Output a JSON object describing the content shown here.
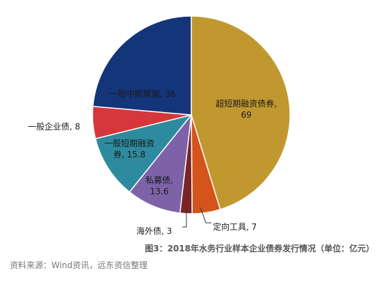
{
  "chart_data": {
    "type": "pie",
    "title": "",
    "slices": [
      {
        "label": "超短期融资债券",
        "value": 69,
        "text_lines": [
          "超短期融资债券,",
          "69"
        ],
        "color": "#C0982F"
      },
      {
        "label": "定向工具",
        "value": 7,
        "text_lines": [
          "定向工具, 7"
        ],
        "color": "#D4541B"
      },
      {
        "label": "海外债",
        "value": 3,
        "text_lines": [
          "海外债, 3"
        ],
        "color": "#7A2424"
      },
      {
        "label": "私募债",
        "value": 13.6,
        "text_lines": [
          "私募债,",
          "13.6"
        ],
        "color": "#7D62A8"
      },
      {
        "label": "一般短期融资券",
        "value": 15.8,
        "text_lines": [
          "一般短期融资",
          "券, 15.8"
        ],
        "color": "#2E8A9E"
      },
      {
        "label": "一般企业债",
        "value": 8,
        "text_lines": [
          "一般企业债, 8"
        ],
        "color": "#D6373A"
      },
      {
        "label": "一般中期票据",
        "value": 36,
        "text_lines": [
          "一般中期票据, 36"
        ],
        "color": "#15357A"
      }
    ]
  },
  "caption": "图3：2018年水务行业样本企业债券发行情况（单位：亿元）",
  "source": "资料来源：Wind资讯，远东资信整理"
}
